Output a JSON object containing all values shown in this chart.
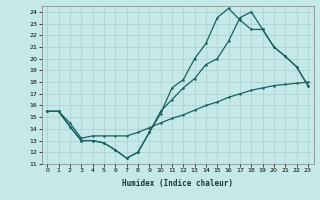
{
  "xlabel": "Humidex (Indice chaleur)",
  "bg_color": "#c5e8e8",
  "grid_color": "#aacfcf",
  "line_color": "#1a6060",
  "xlim": [
    -0.5,
    23.5
  ],
  "ylim": [
    11,
    24.5
  ],
  "xticks": [
    0,
    1,
    2,
    3,
    4,
    5,
    6,
    7,
    8,
    9,
    10,
    11,
    12,
    13,
    14,
    15,
    16,
    17,
    18,
    19,
    20,
    21,
    22,
    23
  ],
  "yticks": [
    11,
    12,
    13,
    14,
    15,
    16,
    17,
    18,
    19,
    20,
    21,
    22,
    23,
    24
  ],
  "line1_x": [
    0,
    1,
    2,
    3,
    4,
    5,
    6,
    7,
    8,
    9,
    10,
    11,
    12,
    13,
    14,
    15,
    16,
    17,
    18,
    19,
    20,
    21,
    22,
    23
  ],
  "line1_y": [
    15.5,
    15.5,
    14.2,
    13.0,
    13.0,
    12.8,
    12.2,
    11.5,
    12.0,
    13.7,
    15.5,
    16.5,
    17.5,
    18.3,
    19.5,
    20.0,
    21.5,
    23.5,
    24.0,
    22.5,
    21.0,
    20.2,
    19.3,
    17.7
  ],
  "line2_x": [
    0,
    1,
    2,
    3,
    4,
    5,
    6,
    7,
    8,
    9,
    10,
    11,
    12,
    13,
    14,
    15,
    16,
    17,
    18,
    19,
    20,
    21,
    22,
    23
  ],
  "line2_y": [
    15.5,
    15.5,
    14.2,
    13.0,
    13.0,
    12.8,
    12.2,
    11.5,
    12.0,
    13.7,
    15.3,
    17.5,
    18.2,
    20.0,
    21.3,
    23.5,
    24.3,
    23.3,
    22.5,
    22.5,
    21.0,
    20.2,
    19.3,
    17.7
  ],
  "line3_x": [
    0,
    1,
    2,
    3,
    4,
    5,
    6,
    7,
    8,
    9,
    10,
    11,
    12,
    13,
    14,
    15,
    16,
    17,
    18,
    19,
    20,
    21,
    22,
    23
  ],
  "line3_y": [
    15.5,
    15.5,
    14.5,
    13.2,
    13.4,
    13.4,
    13.4,
    13.4,
    13.7,
    14.1,
    14.5,
    14.9,
    15.2,
    15.6,
    16.0,
    16.3,
    16.7,
    17.0,
    17.3,
    17.5,
    17.7,
    17.8,
    17.9,
    18.0
  ],
  "marker_size": 1.8,
  "linewidth": 0.9,
  "tick_labelsize": 4.5,
  "xlabel_fontsize": 5.5
}
